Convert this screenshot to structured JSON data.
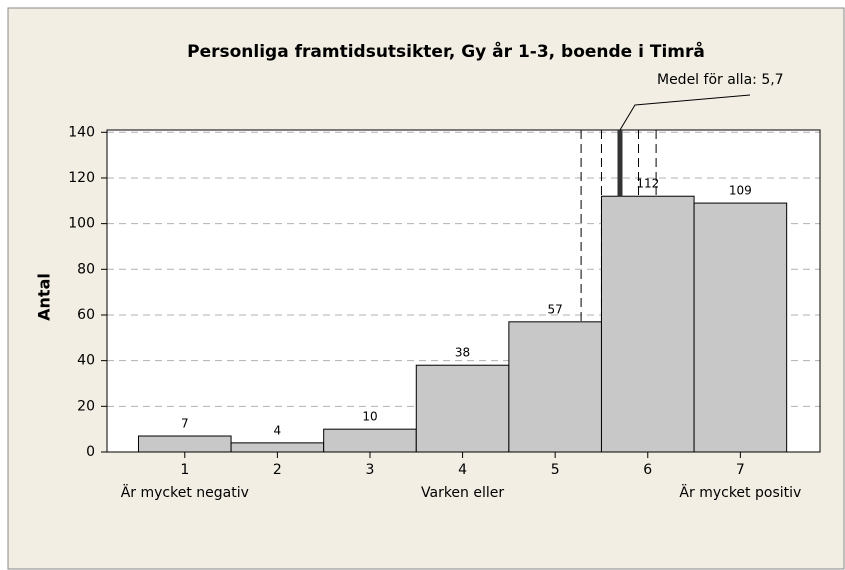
{
  "chart_data": {
    "type": "bar",
    "title": "Personliga framtidsutsikter, Gy år 1-3, boende i Timrå",
    "ylabel": "Antal",
    "x": [
      1,
      2,
      3,
      4,
      5,
      6,
      7
    ],
    "values": [
      7,
      4,
      10,
      38,
      57,
      112,
      109
    ],
    "xtick_sublabels": [
      "Är mycket negativ",
      null,
      null,
      "Varken eller",
      null,
      null,
      "Är mycket positiv"
    ],
    "color": "#c8c8c8",
    "xlim": [
      0.16,
      7.86
    ],
    "xticks": [
      1,
      2,
      3,
      4,
      5,
      6,
      7
    ],
    "ylim": [
      0,
      141
    ],
    "yticks": [
      0,
      20,
      40,
      60,
      80,
      100,
      120,
      140
    ],
    "grid": true,
    "mean_line": {
      "value": 5.7,
      "label": "Medel för alla: 5,7"
    },
    "interval_lines": [
      5.28,
      5.5,
      5.9,
      6.09
    ]
  }
}
